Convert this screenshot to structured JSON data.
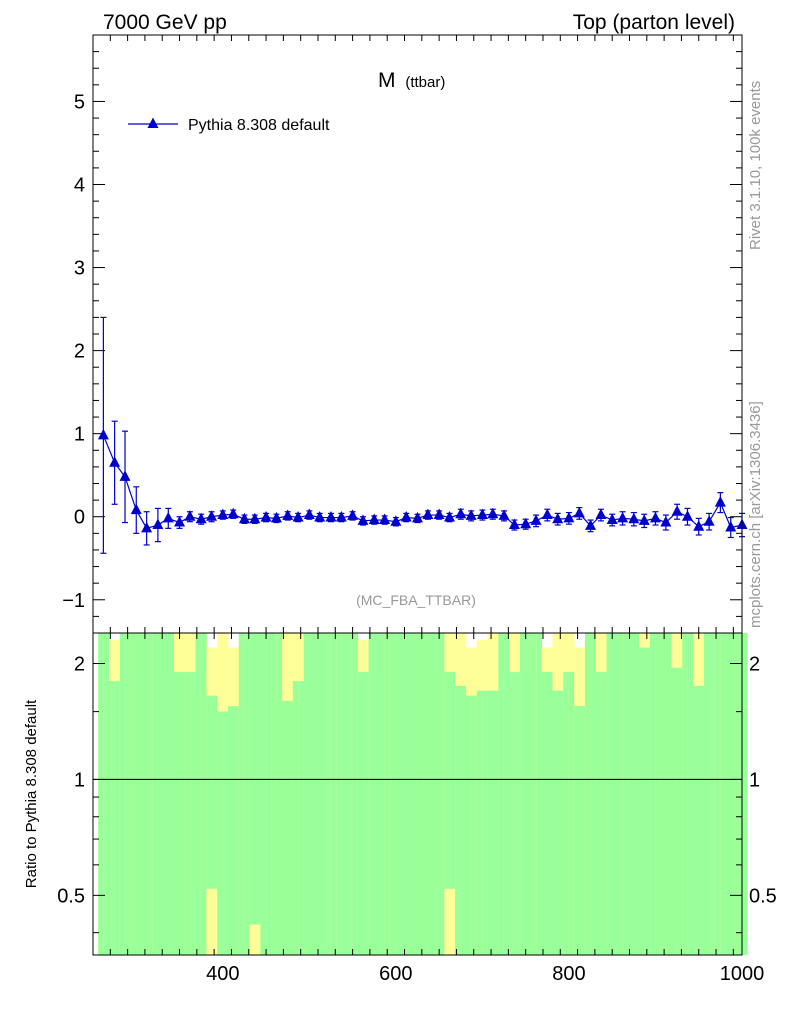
{
  "header": {
    "left": "7000 GeV pp",
    "right": "Top (parton level)"
  },
  "side_labels": {
    "top": "Rivet 3.1.10,  100k events",
    "bottom": "mcplots.cern.ch [arXiv:1306.3436]"
  },
  "colors": {
    "series": "#0000cc",
    "band_inner": "#99ff99",
    "band_outer": "#ffff99",
    "axis": "#000000",
    "watermark": "#999999"
  },
  "chart_data": [
    {
      "type": "scatter",
      "title": "M",
      "title_sub": "(ttbar)",
      "watermark": "(MC_FBA_TTBAR)",
      "legend": "top-left",
      "xlim": [
        250,
        1000
      ],
      "ylim": [
        -1.4,
        5.8
      ],
      "yticks": [
        -1,
        0,
        1,
        2,
        3,
        4,
        5
      ],
      "ytick_labels": [
        "−1",
        "0",
        "1",
        "2",
        "3",
        "4",
        "5"
      ],
      "series": [
        {
          "name": "Pythia 8.308 default",
          "marker": "triangle",
          "x": [
            262,
            275,
            287,
            300,
            312,
            325,
            337,
            350,
            362,
            375,
            387,
            400,
            412,
            425,
            437,
            450,
            462,
            475,
            487,
            500,
            512,
            525,
            537,
            550,
            562,
            575,
            587,
            600,
            612,
            625,
            637,
            650,
            662,
            675,
            687,
            700,
            712,
            725,
            737,
            750,
            762,
            775,
            787,
            800,
            812,
            825,
            837,
            850,
            862,
            875,
            887,
            900,
            912,
            925,
            937,
            950,
            962,
            975,
            987,
            1000
          ],
          "y": [
            0.98,
            0.65,
            0.48,
            0.08,
            -0.14,
            -0.1,
            -0.02,
            -0.07,
            0.0,
            -0.03,
            0.0,
            0.02,
            0.03,
            -0.03,
            -0.03,
            -0.01,
            -0.02,
            0.01,
            -0.01,
            0.02,
            -0.01,
            -0.01,
            -0.01,
            0.01,
            -0.05,
            -0.04,
            -0.04,
            -0.06,
            -0.01,
            -0.02,
            0.02,
            0.02,
            -0.01,
            0.03,
            0.01,
            0.02,
            0.03,
            0.01,
            -0.1,
            -0.09,
            -0.05,
            0.02,
            -0.03,
            -0.02,
            0.04,
            -0.11,
            0.02,
            -0.04,
            -0.02,
            -0.03,
            -0.05,
            -0.02,
            -0.07,
            0.06,
            0.0,
            -0.12,
            -0.06,
            0.17,
            -0.13,
            -0.1
          ],
          "yerr": [
            1.42,
            0.5,
            0.55,
            0.28,
            0.2,
            0.2,
            0.12,
            0.07,
            0.06,
            0.06,
            0.06,
            0.05,
            0.05,
            0.05,
            0.05,
            0.05,
            0.05,
            0.05,
            0.05,
            0.05,
            0.05,
            0.05,
            0.05,
            0.05,
            0.05,
            0.05,
            0.05,
            0.05,
            0.05,
            0.05,
            0.05,
            0.05,
            0.05,
            0.06,
            0.06,
            0.06,
            0.06,
            0.06,
            0.06,
            0.06,
            0.07,
            0.07,
            0.07,
            0.07,
            0.07,
            0.07,
            0.07,
            0.07,
            0.08,
            0.08,
            0.08,
            0.08,
            0.09,
            0.09,
            0.1,
            0.1,
            0.1,
            0.12,
            0.12,
            0.14
          ]
        }
      ]
    },
    {
      "type": "bar",
      "ylabel": "Ratio to Pythia 8.308 default",
      "xlim": [
        250,
        1000
      ],
      "ylim": [
        0.35,
        2.4
      ],
      "log_y": true,
      "yticks": [
        0.5,
        1,
        2
      ],
      "ytick_labels": [
        "0.5",
        "1",
        "2"
      ],
      "xticks": [
        400,
        600,
        800,
        1000
      ],
      "xtick_labels": [
        "400",
        "600",
        "800",
        "1000"
      ],
      "reference_line": 1,
      "bin_edges_start": 256,
      "bin_width": 6.25,
      "band_inner_hi": [
        2.4,
        2.4,
        1.8,
        1.8,
        2.4,
        2.4,
        2.4,
        2.4,
        2.4,
        2.4,
        2.4,
        2.4,
        2.4,
        2.4,
        1.9,
        1.9,
        1.9,
        1.9,
        2.4,
        2.4,
        1.65,
        1.65,
        1.5,
        1.5,
        1.55,
        1.55,
        2.4,
        2.4,
        2.4,
        2.4,
        2.4,
        2.4,
        2.4,
        2.4,
        1.6,
        1.6,
        1.8,
        1.8,
        2.4,
        2.4,
        2.4,
        2.4,
        2.4,
        2.4,
        2.4,
        2.4,
        2.4,
        2.4,
        1.9,
        1.9,
        2.4,
        2.4,
        2.4,
        2.4,
        2.4,
        2.4,
        2.4,
        2.4,
        2.4,
        2.4,
        2.4,
        2.4,
        2.4,
        2.4,
        1.9,
        1.9,
        1.75,
        1.75,
        1.65,
        1.65,
        1.7,
        1.7,
        1.7,
        1.7,
        2.4,
        2.4,
        1.9,
        1.9,
        2.4,
        2.4,
        2.4,
        2.4,
        1.9,
        1.9,
        1.7,
        1.7,
        1.9,
        1.9,
        1.55,
        1.55,
        2.4,
        2.4,
        1.9,
        1.9,
        2.4,
        2.4,
        2.4,
        2.4,
        2.4,
        2.4,
        2.2,
        2.2,
        2.4,
        2.4,
        2.4,
        2.4,
        1.95,
        1.95,
        2.4,
        2.4,
        1.75,
        1.75,
        2.4,
        2.4,
        2.4,
        2.4,
        2.4,
        2.4,
        2.4,
        2.4,
        2.4,
        2.4
      ],
      "band_outer_hi": [
        2.4,
        2.4,
        2.3,
        2.3,
        2.4,
        2.4,
        2.4,
        2.4,
        2.4,
        2.4,
        2.4,
        2.4,
        2.4,
        2.4,
        2.4,
        2.4,
        2.4,
        2.4,
        2.4,
        2.4,
        2.2,
        2.2,
        2.4,
        2.4,
        2.2,
        2.2,
        2.4,
        2.4,
        2.4,
        2.4,
        2.4,
        2.4,
        2.4,
        2.4,
        2.4,
        2.4,
        2.4,
        2.4,
        2.4,
        2.4,
        2.4,
        2.4,
        2.4,
        2.4,
        2.4,
        2.4,
        2.4,
        2.4,
        2.3,
        2.3,
        2.4,
        2.4,
        2.4,
        2.4,
        2.4,
        2.4,
        2.4,
        2.4,
        2.4,
        2.4,
        2.4,
        2.4,
        2.4,
        2.4,
        2.4,
        2.4,
        2.4,
        2.4,
        2.2,
        2.2,
        2.3,
        2.3,
        2.4,
        2.4,
        2.4,
        2.4,
        2.4,
        2.4,
        2.4,
        2.4,
        2.4,
        2.4,
        2.2,
        2.2,
        2.4,
        2.4,
        2.4,
        2.4,
        2.2,
        2.2,
        2.4,
        2.4,
        2.4,
        2.4,
        2.4,
        2.4,
        2.4,
        2.4,
        2.4,
        2.4,
        2.4,
        2.4,
        2.4,
        2.4,
        2.4,
        2.4,
        2.4,
        2.4,
        2.4,
        2.4,
        2.4,
        2.4,
        2.4,
        2.4,
        2.4,
        2.4,
        2.4,
        2.4,
        2.4,
        2.4
      ],
      "band_inner_lo": [
        0.35,
        0.35,
        0.35,
        0.35,
        0.35,
        0.35,
        0.35,
        0.35,
        0.35,
        0.35,
        0.35,
        0.35,
        0.35,
        0.35,
        0.35,
        0.35,
        0.35,
        0.35,
        0.35,
        0.35,
        0.52,
        0.52,
        0.35,
        0.35,
        0.35,
        0.35,
        0.35,
        0.35,
        0.42,
        0.42,
        0.35,
        0.35,
        0.35,
        0.35,
        0.35,
        0.35,
        0.35,
        0.35,
        0.35,
        0.35,
        0.35,
        0.35,
        0.35,
        0.35,
        0.35,
        0.35,
        0.35,
        0.35,
        0.35,
        0.35,
        0.35,
        0.35,
        0.35,
        0.35,
        0.35,
        0.35,
        0.35,
        0.35,
        0.35,
        0.35,
        0.35,
        0.35,
        0.35,
        0.35,
        0.52,
        0.52,
        0.35,
        0.35,
        0.35,
        0.35,
        0.35,
        0.35,
        0.35,
        0.35,
        0.35,
        0.35,
        0.35,
        0.35,
        0.35,
        0.35,
        0.35,
        0.35,
        0.35,
        0.35,
        0.35,
        0.35,
        0.35,
        0.35,
        0.35,
        0.35,
        0.35,
        0.35,
        0.35,
        0.35,
        0.35,
        0.35,
        0.35,
        0.35,
        0.35,
        0.35,
        0.35,
        0.35,
        0.35,
        0.35,
        0.35,
        0.35,
        0.35,
        0.35,
        0.35,
        0.35,
        0.35,
        0.35,
        0.35,
        0.35,
        0.35,
        0.35,
        0.35,
        0.35,
        0.35,
        0.35
      ],
      "band_outer_lo": [
        0.35,
        0.35,
        0.35,
        0.35,
        0.35,
        0.35,
        0.35,
        0.35,
        0.35,
        0.35,
        0.35,
        0.35,
        0.35,
        0.35,
        0.35,
        0.35,
        0.35,
        0.35,
        0.35,
        0.35,
        0.35,
        0.35,
        0.35,
        0.35,
        0.35,
        0.35,
        0.35,
        0.35,
        0.35,
        0.35,
        0.35,
        0.35,
        0.35,
        0.35,
        0.35,
        0.35,
        0.35,
        0.35,
        0.35,
        0.35,
        0.35,
        0.35,
        0.35,
        0.35,
        0.35,
        0.35,
        0.35,
        0.35,
        0.35,
        0.35,
        0.35,
        0.35,
        0.35,
        0.35,
        0.35,
        0.35,
        0.35,
        0.35,
        0.35,
        0.35,
        0.35,
        0.35,
        0.35,
        0.35,
        0.35,
        0.35,
        0.35,
        0.35,
        0.35,
        0.35,
        0.35,
        0.35,
        0.35,
        0.35,
        0.35,
        0.35,
        0.35,
        0.35,
        0.35,
        0.35,
        0.35,
        0.35,
        0.35,
        0.35,
        0.35,
        0.35,
        0.35,
        0.35,
        0.35,
        0.35,
        0.35,
        0.35,
        0.35,
        0.35,
        0.35,
        0.35,
        0.35,
        0.35,
        0.35,
        0.35,
        0.35,
        0.35,
        0.35,
        0.35,
        0.35,
        0.35,
        0.35,
        0.35,
        0.35,
        0.35,
        0.35,
        0.35,
        0.35,
        0.35,
        0.35,
        0.35,
        0.35,
        0.35,
        0.35,
        0.35
      ]
    }
  ]
}
